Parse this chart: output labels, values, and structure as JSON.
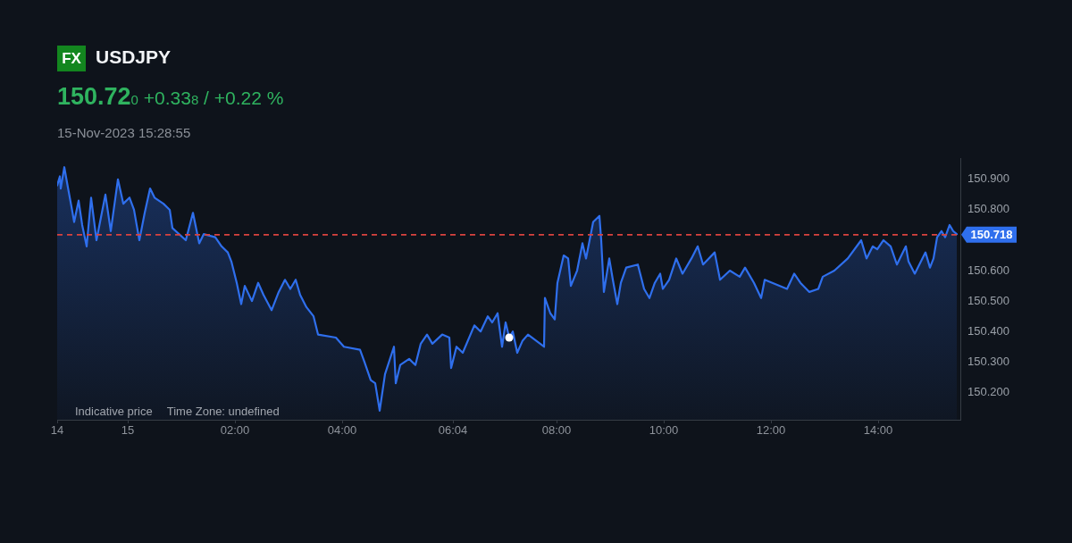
{
  "chart_data": {
    "type": "area",
    "title": "USDJPY",
    "subtitle": "150.72$_{0}$ +0.33$_{8}$ / +0.22 %",
    "annotations": [
      "FX",
      "15-Nov-2023 15:28:55",
      "Indicative price",
      "Time Zone: undefined"
    ],
    "xlim": [
      "2023-11-14T22:41",
      "2023-11-15T15:32"
    ],
    "xticks": [
      {
        "value": "2023-11-14T22:41",
        "label": "14"
      },
      {
        "value": "2023-11-15",
        "label": "15"
      },
      {
        "value": "2023-11-15T02:00",
        "label": "02:00"
      },
      {
        "value": "2023-11-15T04:00",
        "label": "04:00"
      },
      {
        "value": "2023-11-15T06:04",
        "label": "06:04"
      },
      {
        "value": "2023-11-15T08:00",
        "label": "08:00"
      },
      {
        "value": "2023-11-15T10:00",
        "label": "10:00"
      },
      {
        "value": "2023-11-15T12:00",
        "label": "12:00"
      },
      {
        "value": "2023-11-15T14:00",
        "label": "14:00"
      }
    ],
    "ylim": [
      150.11,
      150.97
    ],
    "yticks": [
      {
        "value": 150.2,
        "label": "150.200"
      },
      {
        "value": 150.3,
        "label": "150.300"
      },
      {
        "value": 150.4,
        "label": "150.400"
      },
      {
        "value": 150.5,
        "label": "150.500"
      },
      {
        "value": 150.6,
        "label": "150.600"
      },
      {
        "value": 150.8,
        "label": "150.800"
      },
      {
        "value": 150.9,
        "label": "150.900"
      }
    ],
    "ref_lines": [
      {
        "axis": "y",
        "value": 150.718,
        "label": "150.718",
        "color": "#d9433f",
        "line_style": "dashed"
      }
    ],
    "series": [
      {
        "color": "#2f6fed",
        "x": [
          "2023-11-14T22:41",
          "2023-11-14T22:44",
          "2023-11-14T22:45",
          "2023-11-14T22:49",
          "2023-11-14T22:52",
          "2023-11-14T22:57",
          "2023-11-14T23:00",
          "2023-11-14T23:05",
          "2023-11-14T23:09",
          "2023-11-14T23:14",
          "2023-11-14T23:19",
          "2023-11-14T23:25",
          "2023-11-14T23:29",
          "2023-11-14T23:35",
          "2023-11-14T23:41",
          "2023-11-14T23:49",
          "2023-11-14T23:55",
          "2023-11-15T00:02",
          "2023-11-15T00:07",
          "2023-11-15T00:13",
          "2023-11-15T00:19",
          "2023-11-15T00:25",
          "2023-11-15T00:30",
          "2023-11-15T00:40",
          "2023-11-15T00:47",
          "2023-11-15T00:50",
          "2023-11-15T01:05",
          "2023-11-15T01:13",
          "2023-11-15T01:20",
          "2023-11-15T01:25",
          "2023-11-15T01:38",
          "2023-11-15T01:45",
          "2023-11-15T01:52",
          "2023-11-15T01:56",
          "2023-11-15T02:02",
          "2023-11-15T02:07",
          "2023-11-15T02:11",
          "2023-11-15T02:19",
          "2023-11-15T02:26",
          "2023-11-15T02:32",
          "2023-11-15T02:41",
          "2023-11-15T02:49",
          "2023-11-15T02:56",
          "2023-11-15T03:02",
          "2023-11-15T03:08",
          "2023-11-15T03:13",
          "2023-11-15T03:20",
          "2023-11-15T03:28",
          "2023-11-15T03:33",
          "2023-11-15T03:53",
          "2023-11-15T04:02",
          "2023-11-15T04:20",
          "2023-11-15T04:25",
          "2023-11-15T04:32",
          "2023-11-15T04:37",
          "2023-11-15T04:42",
          "2023-11-15T04:48",
          "2023-11-15T04:58",
          "2023-11-15T05:00",
          "2023-11-15T05:05",
          "2023-11-15T05:15",
          "2023-11-15T05:22",
          "2023-11-15T05:28",
          "2023-11-15T05:35",
          "2023-11-15T05:41",
          "2023-11-15T05:52",
          "2023-11-15T06:00",
          "2023-11-15T06:02",
          "2023-11-15T06:08",
          "2023-11-15T06:15",
          "2023-11-15T06:28",
          "2023-11-15T06:35",
          "2023-11-15T06:43",
          "2023-11-15T06:48",
          "2023-11-15T06:54",
          "2023-11-15T06:59",
          "2023-11-15T07:03",
          "2023-11-15T07:07",
          "2023-11-15T07:11",
          "2023-11-15T07:16",
          "2023-11-15T07:22",
          "2023-11-15T07:28",
          "2023-11-15T07:46",
          "2023-11-15T07:47",
          "2023-11-15T07:53",
          "2023-11-15T07:58",
          "2023-11-15T08:01",
          "2023-11-15T08:08",
          "2023-11-15T08:13",
          "2023-11-15T08:16",
          "2023-11-15T08:23",
          "2023-11-15T08:29",
          "2023-11-15T08:33",
          "2023-11-15T08:41",
          "2023-11-15T08:48",
          "2023-11-15T08:50",
          "2023-11-15T08:53",
          "2023-11-15T08:59",
          "2023-11-15T09:03",
          "2023-11-15T09:08",
          "2023-11-15T09:12",
          "2023-11-15T09:18",
          "2023-11-15T09:31",
          "2023-11-15T09:38",
          "2023-11-15T09:44",
          "2023-11-15T09:50",
          "2023-11-15T09:56",
          "2023-11-15T09:59",
          "2023-11-15T10:06",
          "2023-11-15T10:14",
          "2023-11-15T10:21",
          "2023-11-15T10:31",
          "2023-11-15T10:38",
          "2023-11-15T10:44",
          "2023-11-15T10:57",
          "2023-11-15T11:03",
          "2023-11-15T11:14",
          "2023-11-15T11:25",
          "2023-11-15T11:31",
          "2023-11-15T11:41",
          "2023-11-15T11:49",
          "2023-11-15T11:53",
          "2023-11-15T12:18",
          "2023-11-15T12:26",
          "2023-11-15T12:33",
          "2023-11-15T12:43",
          "2023-11-15T12:53",
          "2023-11-15T12:58",
          "2023-11-15T13:11",
          "2023-11-15T13:26",
          "2023-11-15T13:41",
          "2023-11-15T13:47",
          "2023-11-15T13:54",
          "2023-11-15T13:59",
          "2023-11-15T14:06",
          "2023-11-15T14:14",
          "2023-11-15T14:21",
          "2023-11-15T14:26",
          "2023-11-15T14:31",
          "2023-11-15T14:34",
          "2023-11-15T14:41",
          "2023-11-15T14:53",
          "2023-11-15T14:58",
          "2023-11-15T15:02",
          "2023-11-15T15:06",
          "2023-11-15T15:11",
          "2023-11-15T15:15",
          "2023-11-15T15:20",
          "2023-11-15T15:24",
          "2023-11-15T15:28"
        ],
        "values": [
          150.88,
          150.91,
          150.87,
          150.94,
          150.89,
          150.81,
          150.76,
          150.83,
          150.75,
          150.68,
          150.84,
          150.7,
          150.76,
          150.85,
          150.73,
          150.9,
          150.82,
          150.84,
          150.8,
          150.7,
          150.79,
          150.87,
          150.84,
          150.82,
          150.8,
          150.74,
          150.7,
          150.79,
          150.69,
          150.72,
          150.71,
          150.68,
          150.66,
          150.63,
          150.56,
          150.49,
          150.55,
          150.5,
          150.56,
          150.52,
          150.47,
          150.53,
          150.57,
          150.54,
          150.57,
          150.52,
          150.48,
          150.45,
          150.39,
          150.38,
          150.35,
          150.34,
          150.3,
          150.24,
          150.23,
          150.14,
          150.26,
          150.35,
          150.23,
          150.29,
          150.31,
          150.29,
          150.36,
          150.39,
          150.36,
          150.39,
          150.38,
          150.28,
          150.35,
          150.33,
          150.42,
          150.4,
          150.45,
          150.43,
          150.46,
          150.35,
          150.43,
          150.38,
          150.4,
          150.33,
          150.37,
          150.39,
          150.35,
          150.51,
          150.46,
          150.44,
          150.56,
          150.65,
          150.64,
          150.55,
          150.6,
          150.69,
          150.64,
          150.76,
          150.78,
          150.7,
          150.53,
          150.64,
          150.57,
          150.49,
          150.56,
          150.61,
          150.62,
          150.54,
          150.51,
          150.56,
          150.59,
          150.54,
          150.57,
          150.64,
          150.59,
          150.64,
          150.68,
          150.62,
          150.66,
          150.57,
          150.6,
          150.58,
          150.61,
          150.56,
          150.51,
          150.57,
          150.54,
          150.59,
          150.56,
          150.53,
          150.54,
          150.58,
          150.6,
          150.64,
          150.7,
          150.64,
          150.68,
          150.67,
          150.7,
          150.68,
          150.62,
          150.65,
          150.68,
          150.63,
          150.59,
          150.66,
          150.61,
          150.64,
          150.71,
          150.73,
          150.71,
          150.75,
          150.73,
          150.72
        ]
      },
      {
        "type": "scatter",
        "color": "#ffffff",
        "x": [
          "2023-11-15T07:07"
        ],
        "values": [
          150.38
        ]
      }
    ]
  }
}
